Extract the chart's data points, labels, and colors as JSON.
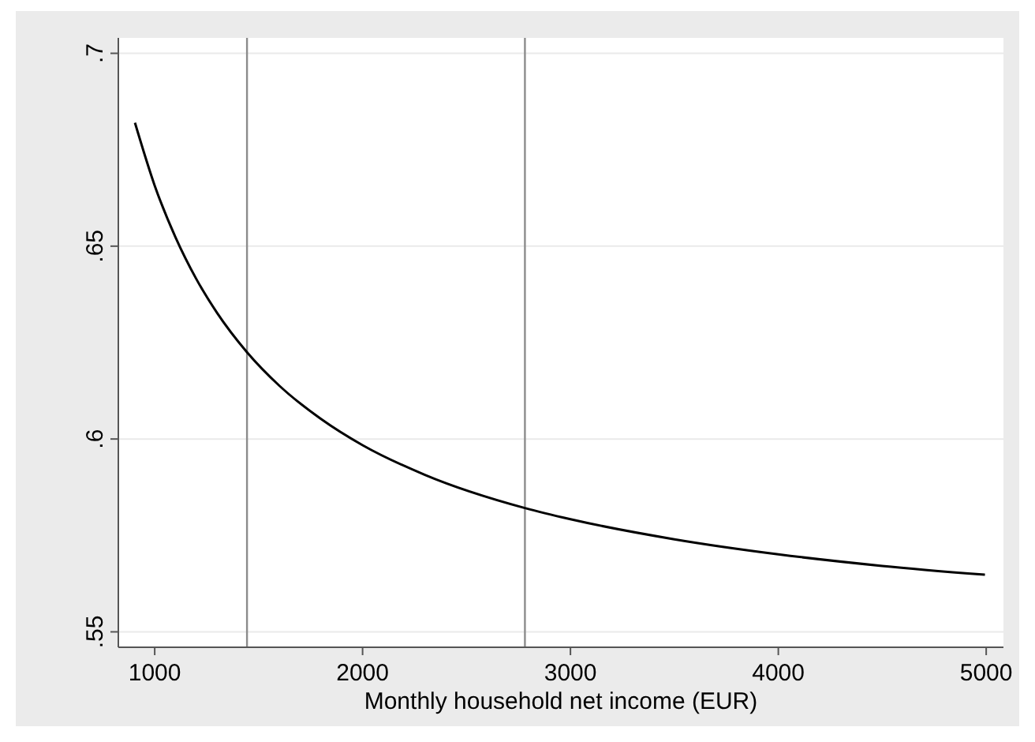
{
  "chart_data": {
    "type": "line",
    "xlabel": "Monthly household net income (EUR)",
    "x": [
      905,
      1000,
      1100,
      1200,
      1300,
      1444,
      1600,
      1800,
      2000,
      2300,
      2781,
      3000,
      3500,
      4000,
      4500,
      4994
    ],
    "series": [
      {
        "color": "#000000",
        "values": [
          0.682,
          0.6657,
          0.6523,
          0.6415,
          0.6327,
          0.6225,
          0.6138,
          0.6052,
          0.5984,
          0.5907,
          0.5821,
          0.5792,
          0.574,
          0.5701,
          0.5671,
          0.5648
        ]
      }
    ],
    "xlim": [
      825,
      5083
    ],
    "ylim": [
      0.546,
      0.704
    ],
    "xticks": [
      1000,
      2000,
      3000,
      4000,
      5000
    ],
    "yticks": [
      {
        "value": 0.55,
        "label": ".55"
      },
      {
        "value": 0.6,
        "label": ".6"
      },
      {
        "value": 0.65,
        "label": ".65"
      },
      {
        "value": 0.7,
        "label": ".7"
      }
    ],
    "grid": "y",
    "marker": "none",
    "line_style": "solid",
    "ref_lines": [
      {
        "axis": "x",
        "value": 1444,
        "color": "#8c8c8c"
      },
      {
        "axis": "x",
        "value": 2781,
        "color": "#8c8c8c"
      }
    ]
  }
}
